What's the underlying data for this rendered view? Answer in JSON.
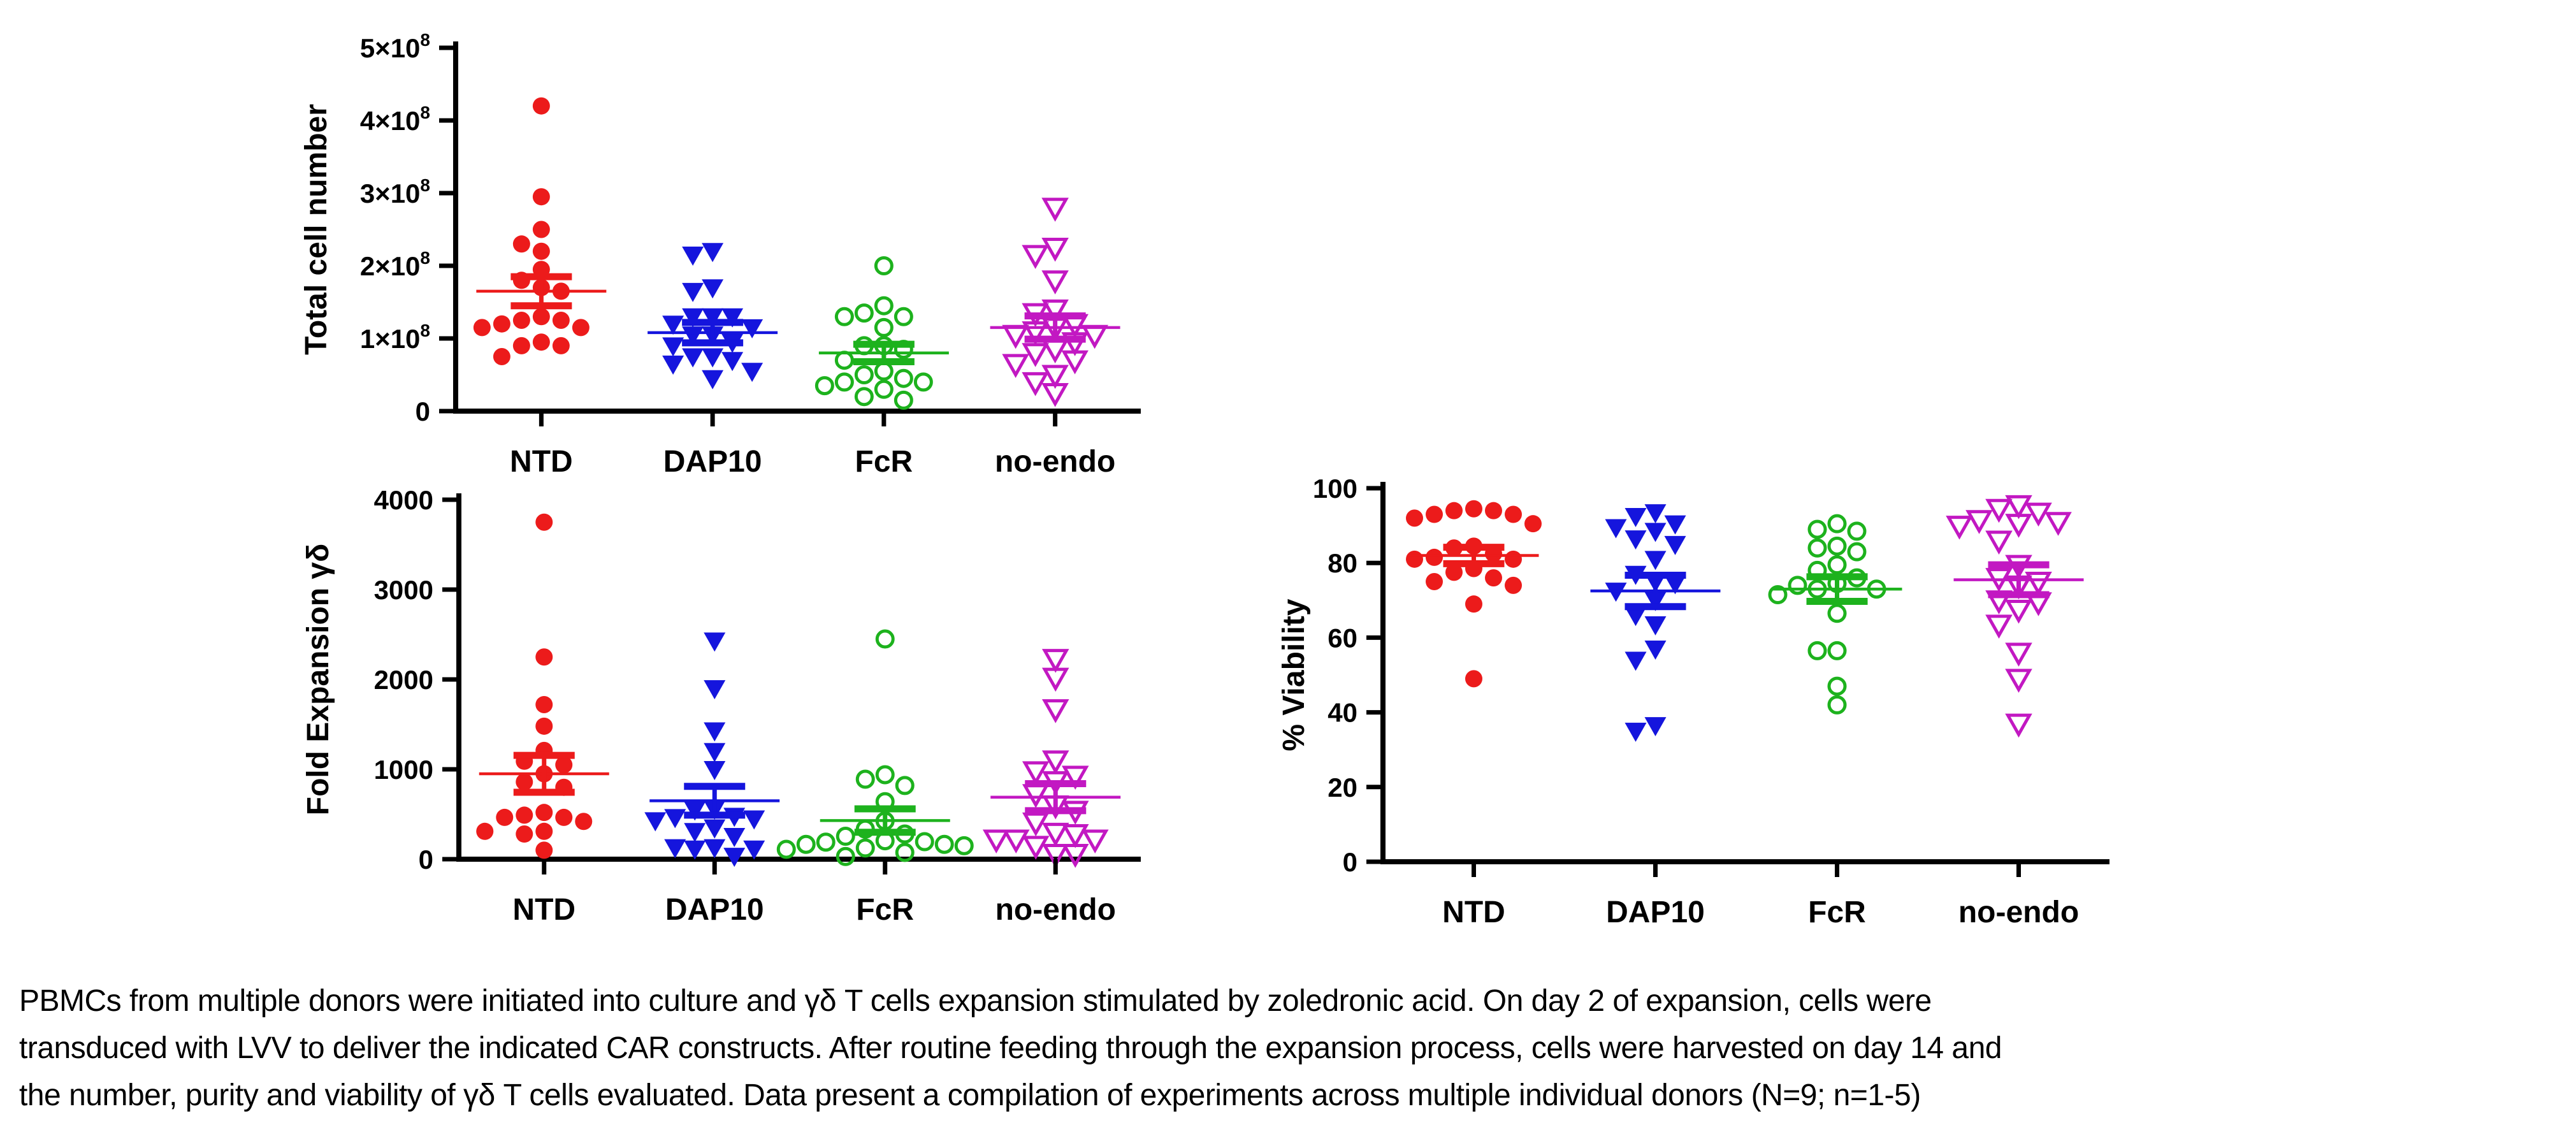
{
  "figure": {
    "categories": [
      "NTD",
      "DAP10",
      "FcR",
      "no-endo"
    ],
    "marker_legend": [
      {
        "group": "NTD",
        "marker": "filled-circle",
        "color": "#EC1B1B"
      },
      {
        "group": "DAP10",
        "marker": "filled-down-triangle",
        "color": "#1515DD"
      },
      {
        "group": "FcR",
        "marker": "open-circle",
        "color": "#1DB21D"
      },
      {
        "group": "no-endo",
        "marker": "open-down-triangle",
        "color": "#C218C2"
      }
    ],
    "chart_data": [
      {
        "type": "scatter",
        "id": "total-cell-number",
        "title": "",
        "ylabel": "Total cell number",
        "value_scale": "1e8",
        "ylim": [
          0,
          5
        ],
        "tick_labels": [
          "0",
          "1×10^8",
          "2×10^8",
          "3×10^8",
          "4×10^8",
          "5×10^8"
        ],
        "tick_values": [
          0,
          1,
          2,
          3,
          4,
          5
        ],
        "grid": false,
        "series": [
          {
            "name": "NTD",
            "marker": "circle",
            "filled": true,
            "color": "#EC1B1B",
            "values": [
              4.2,
              2.95,
              2.5,
              2.3,
              2.2,
              1.95,
              1.8,
              1.7,
              1.65,
              1.3,
              1.25,
              1.25,
              1.2,
              1.15,
              1.15,
              0.95,
              0.9,
              0.9,
              0.75
            ],
            "mean": 1.65,
            "sem": 0.2
          },
          {
            "name": "DAP10",
            "marker": "triangle-down",
            "filled": true,
            "color": "#1515DD",
            "values": [
              2.2,
              2.15,
              1.7,
              1.65,
              1.3,
              1.3,
              1.3,
              1.2,
              1.15,
              1.05,
              1.05,
              0.95,
              0.9,
              0.75,
              0.75,
              0.7,
              0.65,
              0.55,
              0.45
            ],
            "mean": 1.08,
            "sem": 0.14
          },
          {
            "name": "FcR",
            "marker": "circle",
            "filled": false,
            "color": "#1DB21D",
            "values": [
              2.0,
              1.45,
              1.35,
              1.3,
              1.3,
              1.15,
              0.9,
              0.9,
              0.85,
              0.7,
              0.55,
              0.5,
              0.45,
              0.4,
              0.4,
              0.35,
              0.3,
              0.2,
              0.15
            ],
            "mean": 0.8,
            "sem": 0.12
          },
          {
            "name": "no-endo",
            "marker": "triangle-down",
            "filled": false,
            "color": "#C218C2",
            "values": [
              2.8,
              2.25,
              2.15,
              1.8,
              1.4,
              1.35,
              1.2,
              1.15,
              1.1,
              1.05,
              1.05,
              0.95,
              0.85,
              0.8,
              0.7,
              0.65,
              0.5,
              0.4,
              0.25
            ],
            "mean": 1.15,
            "sem": 0.16
          }
        ]
      },
      {
        "type": "scatter",
        "id": "fold-expansion-gd",
        "title": "",
        "ylabel": "Fold Expansion γδ",
        "ylim": [
          0,
          4000
        ],
        "tick_labels": [
          "0",
          "1000",
          "2000",
          "3000",
          "4000"
        ],
        "tick_values": [
          0,
          1000,
          2000,
          3000,
          4000
        ],
        "grid": false,
        "series": [
          {
            "name": "NTD",
            "marker": "circle",
            "filled": true,
            "color": "#EC1B1B",
            "values": [
              3750,
              2250,
              1720,
              1480,
              1210,
              1090,
              1050,
              950,
              860,
              800,
              520,
              490,
              465,
              465,
              420,
              310,
              310,
              280,
              100
            ],
            "mean": 950,
            "sem": 205
          },
          {
            "name": "DAP10",
            "marker": "triangle-down",
            "filled": true,
            "color": "#1515DD",
            "values": [
              2430,
              1900,
              1430,
              1200,
              1000,
              560,
              550,
              480,
              465,
              450,
              430,
              350,
              310,
              255,
              130,
              130,
              115,
              115,
              35
            ],
            "mean": 650,
            "sem": 160
          },
          {
            "name": "FcR",
            "marker": "circle",
            "filled": false,
            "color": "#1DB21D",
            "values": [
              2450,
              940,
              890,
              820,
              640,
              425,
              335,
              280,
              255,
              205,
              195,
              190,
              165,
              165,
              150,
              125,
              110,
              75,
              30
            ],
            "mean": 430,
            "sem": 130
          },
          {
            "name": "no-endo",
            "marker": "triangle-down",
            "filled": false,
            "color": "#C218C2",
            "values": [
              2230,
              2020,
              1670,
              1100,
              980,
              930,
              870,
              725,
              600,
              540,
              410,
              295,
              280,
              220,
              220,
              220,
              150,
              60,
              60
            ],
            "mean": 690,
            "sem": 150
          }
        ]
      },
      {
        "type": "scatter",
        "id": "percent-viability",
        "title": "",
        "ylabel": "% Viability",
        "ylim": [
          0,
          100
        ],
        "tick_labels": [
          "0",
          "20",
          "40",
          "60",
          "80",
          "100"
        ],
        "tick_values": [
          0,
          20,
          40,
          60,
          80,
          100
        ],
        "grid": false,
        "series": [
          {
            "name": "NTD",
            "marker": "circle",
            "filled": true,
            "color": "#EC1B1B",
            "values": [
              94.5,
              94,
              94,
              93,
              93,
              92,
              90.5,
              84.5,
              84,
              82.5,
              81.5,
              81,
              81,
              78.5,
              77.5,
              76,
              75,
              74,
              69,
              49
            ],
            "mean": 82,
            "sem": 2.2
          },
          {
            "name": "DAP10",
            "marker": "triangle-down",
            "filled": true,
            "color": "#1515DD",
            "values": [
              93.5,
              92.5,
              90.5,
              89.5,
              88.5,
              86.5,
              85,
              81,
              77,
              75,
              74.5,
              72.5,
              70,
              66,
              63.5,
              57,
              54,
              36.5,
              35
            ],
            "mean": 72.5,
            "sem": 4.2
          },
          {
            "name": "FcR",
            "marker": "circle",
            "filled": false,
            "color": "#1DB21D",
            "values": [
              90.5,
              89,
              88.5,
              84.5,
              84,
              83,
              79.5,
              78,
              76,
              74.5,
              74,
              73,
              73,
              71.5,
              66.5,
              56.5,
              56.5,
              47,
              42
            ],
            "mean": 73,
            "sem": 3.3
          },
          {
            "name": "no-endo",
            "marker": "triangle-down",
            "filled": false,
            "color": "#C218C2",
            "values": [
              95.5,
              94.5,
              93.5,
              91.5,
              91,
              90.5,
              90,
              86,
              79.5,
              76,
              75,
              74,
              70,
              69.5,
              67.5,
              63.5,
              56,
              49,
              37
            ],
            "mean": 75.5,
            "sem": 4
          }
        ]
      }
    ]
  },
  "caption": {
    "lines": [
      "PBMCs from multiple donors were initiated into culture and γδ T cells expansion stimulated by zoledronic acid. On day 2 of expansion, cells were",
      "transduced with LVV to deliver the indicated CAR constructs. After routine feeding through the expansion process, cells were harvested on day 14 and",
      "the number, purity and viability of γδ T cells evaluated. Data present a compilation of experiments across multiple individual donors (N=9; n=1-5)"
    ]
  }
}
